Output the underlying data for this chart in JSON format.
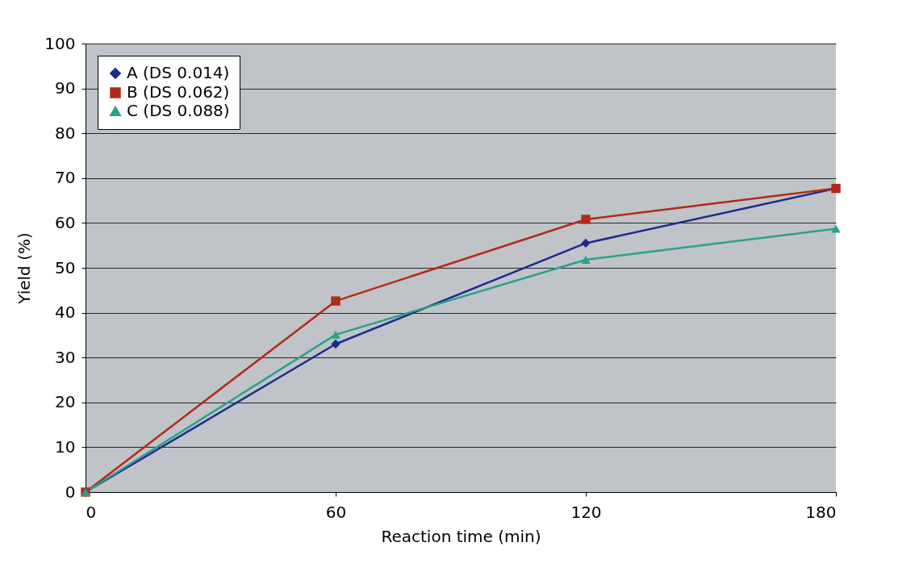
{
  "chart_data": {
    "type": "line",
    "xlabel": "Reaction time (min)",
    "ylabel": "Yield (%)",
    "x": [
      0,
      60,
      120,
      180
    ],
    "xlim": [
      0,
      180
    ],
    "xticks": [
      0,
      60,
      120,
      180
    ],
    "ylim": [
      0,
      100
    ],
    "yticks": [
      0,
      10,
      20,
      30,
      40,
      50,
      60,
      70,
      80,
      90,
      100
    ],
    "grid": "y",
    "legend": "top left",
    "series": [
      {
        "name": "A (DS 0.014)",
        "color": "#1f2a8c",
        "marker": "diamond",
        "values": [
          0,
          33.0,
          55.5,
          67.7
        ]
      },
      {
        "name": "B (DS 0.062)",
        "color": "#b22a1a",
        "marker": "square",
        "values": [
          0,
          42.6,
          60.8,
          67.7
        ]
      },
      {
        "name": "C (DS 0.088)",
        "color": "#2aa08a",
        "marker": "triangle",
        "values": [
          0,
          35.1,
          51.8,
          58.7
        ]
      }
    ]
  }
}
